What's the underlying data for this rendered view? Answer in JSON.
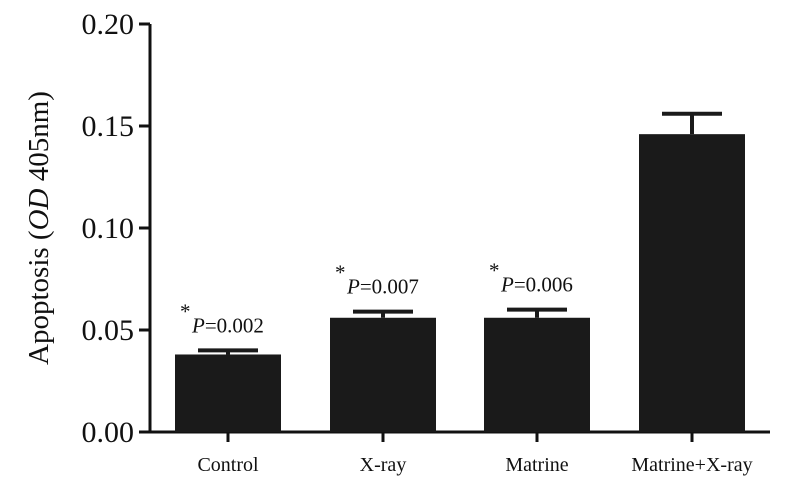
{
  "chart_data": {
    "type": "bar",
    "title": "",
    "ylabel": {
      "prefix": "Apoptosis (",
      "italic": "OD",
      "suffix": " 405nm)"
    },
    "xlabel": "",
    "categories": [
      "Control",
      "X-ray",
      "Matrine",
      "Matrine+X-ray"
    ],
    "values": [
      0.038,
      0.056,
      0.056,
      0.146
    ],
    "error_upper": [
      0.04,
      0.059,
      0.06,
      0.156
    ],
    "ylim": [
      0,
      0.2
    ],
    "yticks": [
      "0.00",
      "0.05",
      "0.10",
      "0.15",
      "0.20"
    ],
    "annotations": [
      {
        "star": "*",
        "p": "P",
        "value": "=0.002"
      },
      {
        "star": "*",
        "p": "P",
        "value": "=0.007"
      },
      {
        "star": "*",
        "p": "P",
        "value": "=0.006"
      },
      null
    ],
    "bar_color": "#1a1a1a",
    "grid": false,
    "legend": "none"
  }
}
